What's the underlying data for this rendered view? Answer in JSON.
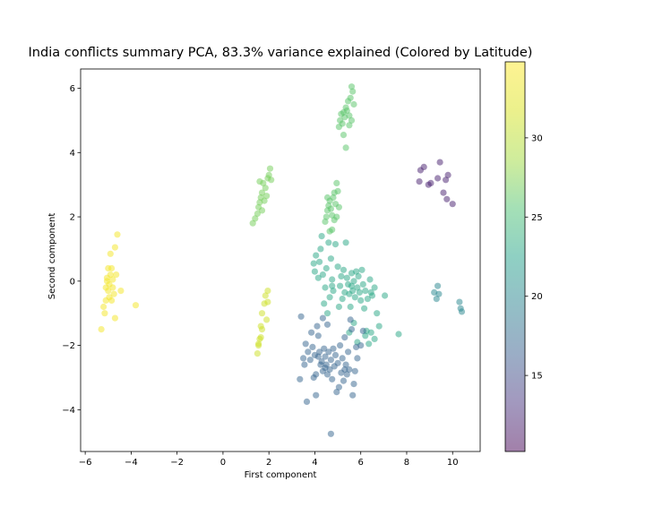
{
  "chart_data": {
    "type": "scatter",
    "title": "India conflicts summary PCA, 83.3% variance explained (Colored by Latitude)",
    "xlabel": "First component",
    "ylabel": "Second component",
    "xlim": [
      -6.2,
      11.2
    ],
    "ylim": [
      -5.3,
      6.6
    ],
    "x_ticks": [
      -6,
      -4,
      -2,
      0,
      2,
      4,
      6,
      8,
      10
    ],
    "x_tick_labels": [
      "−6",
      "−4",
      "−2",
      "0",
      "2",
      "4",
      "6",
      "8",
      "10"
    ],
    "y_ticks": [
      -4,
      -2,
      0,
      2,
      4,
      6
    ],
    "y_tick_labels": [
      "−4",
      "−2",
      "0",
      "2",
      "4",
      "6"
    ],
    "grid": false,
    "colormap": "viridis",
    "point_alpha": 0.5,
    "colorbar": {
      "label": "",
      "range": [
        10.2,
        34.8
      ],
      "ticks": [
        15,
        20,
        25,
        30
      ],
      "tick_labels": [
        "15",
        "20",
        "25",
        "30"
      ]
    },
    "series": [
      {
        "group": "yellow cluster (far left)",
        "color_value": 34,
        "points": [
          [
            -5.3,
            -1.5
          ],
          [
            -5.2,
            -0.8
          ],
          [
            -5.15,
            -1.0
          ],
          [
            -5.1,
            -0.2
          ],
          [
            -5.05,
            0.0
          ],
          [
            -5.0,
            0.4
          ],
          [
            -5.0,
            -0.3
          ],
          [
            -4.95,
            -0.5
          ],
          [
            -4.9,
            0.2
          ],
          [
            -4.9,
            0.85
          ],
          [
            -4.85,
            -0.6
          ],
          [
            -4.85,
            0.4
          ],
          [
            -4.8,
            -0.2
          ],
          [
            -4.8,
            0.05
          ],
          [
            -4.75,
            -0.4
          ],
          [
            -4.7,
            -1.15
          ],
          [
            -4.7,
            1.05
          ],
          [
            -4.65,
            0.2
          ],
          [
            -4.6,
            1.45
          ],
          [
            -4.45,
            -0.3
          ],
          [
            -3.8,
            -0.75
          ],
          [
            -5.05,
            0.1
          ],
          [
            -4.95,
            -0.1
          ],
          [
            -5.1,
            -0.6
          ]
        ]
      },
      {
        "group": "yellow-green cluster",
        "color_value": 31,
        "points": [
          [
            1.5,
            -2.25
          ],
          [
            1.55,
            -2.0
          ],
          [
            1.6,
            -1.8
          ],
          [
            1.65,
            -1.75
          ],
          [
            1.7,
            -1.5
          ],
          [
            1.65,
            -1.4
          ],
          [
            1.7,
            -1.0
          ],
          [
            1.8,
            -0.7
          ],
          [
            1.85,
            -0.45
          ],
          [
            1.9,
            -1.2
          ],
          [
            1.95,
            -0.3
          ],
          [
            1.95,
            -0.65
          ],
          [
            1.55,
            -1.95
          ]
        ]
      },
      {
        "group": "green vertical cluster (lower left of center)",
        "color_value": 27,
        "points": [
          [
            1.3,
            1.8
          ],
          [
            1.4,
            1.95
          ],
          [
            1.5,
            2.1
          ],
          [
            1.55,
            2.3
          ],
          [
            1.6,
            2.45
          ],
          [
            1.65,
            2.6
          ],
          [
            1.7,
            2.75
          ],
          [
            1.8,
            2.5
          ],
          [
            1.85,
            2.9
          ],
          [
            1.9,
            2.65
          ],
          [
            1.95,
            3.2
          ],
          [
            2.0,
            3.3
          ],
          [
            2.05,
            3.5
          ],
          [
            2.1,
            3.15
          ],
          [
            1.75,
            3.05
          ],
          [
            1.7,
            2.2
          ],
          [
            1.6,
            3.1
          ]
        ]
      },
      {
        "group": "top cluster",
        "color_value": 26,
        "points": [
          [
            5.05,
            4.8
          ],
          [
            5.1,
            5.0
          ],
          [
            5.15,
            5.2
          ],
          [
            5.2,
            4.9
          ],
          [
            5.25,
            4.55
          ],
          [
            5.3,
            5.1
          ],
          [
            5.35,
            5.4
          ],
          [
            5.4,
            5.3
          ],
          [
            5.45,
            5.6
          ],
          [
            5.5,
            5.15
          ],
          [
            5.55,
            5.7
          ],
          [
            5.6,
            6.05
          ],
          [
            5.65,
            5.9
          ],
          [
            5.7,
            5.5
          ],
          [
            5.5,
            4.85
          ],
          [
            5.35,
            4.15
          ],
          [
            5.25,
            5.25
          ],
          [
            5.6,
            5.0
          ]
        ]
      },
      {
        "group": "upper center cluster",
        "color_value": 26,
        "points": [
          [
            4.45,
            1.85
          ],
          [
            4.5,
            2.0
          ],
          [
            4.55,
            2.2
          ],
          [
            4.6,
            2.35
          ],
          [
            4.65,
            2.5
          ],
          [
            4.7,
            2.25
          ],
          [
            4.75,
            2.05
          ],
          [
            4.8,
            2.6
          ],
          [
            4.85,
            2.75
          ],
          [
            4.9,
            2.4
          ],
          [
            4.95,
            3.05
          ],
          [
            5.0,
            2.8
          ],
          [
            4.75,
            1.6
          ],
          [
            4.65,
            1.55
          ],
          [
            4.85,
            1.9
          ],
          [
            4.55,
            2.6
          ],
          [
            5.05,
            2.3
          ],
          [
            4.95,
            2.0
          ]
        ]
      },
      {
        "group": "central teal mass",
        "color_value": 23,
        "points": [
          [
            3.95,
            0.55
          ],
          [
            4.0,
            0.3
          ],
          [
            4.05,
            0.8
          ],
          [
            4.15,
            0.1
          ],
          [
            4.2,
            0.6
          ],
          [
            4.25,
            1.0
          ],
          [
            4.3,
            1.4
          ],
          [
            4.35,
            0.2
          ],
          [
            4.4,
            -0.7
          ],
          [
            4.45,
            -0.2
          ],
          [
            4.5,
            0.4
          ],
          [
            4.55,
            -1.0
          ],
          [
            4.6,
            1.2
          ],
          [
            4.65,
            -0.5
          ],
          [
            4.7,
            0.7
          ],
          [
            4.75,
            0.05
          ],
          [
            4.8,
            -0.3
          ],
          [
            4.9,
            1.15
          ],
          [
            5.0,
            0.45
          ],
          [
            5.05,
            -0.8
          ],
          [
            5.1,
            -0.15
          ],
          [
            5.15,
            0.15
          ],
          [
            5.2,
            -0.55
          ],
          [
            5.25,
            0.35
          ],
          [
            5.3,
            -0.35
          ],
          [
            5.35,
            1.2
          ],
          [
            5.4,
            0.1
          ],
          [
            5.45,
            -0.1
          ],
          [
            5.5,
            -0.4
          ],
          [
            5.55,
            -0.8
          ],
          [
            5.6,
            0.25
          ],
          [
            5.65,
            -0.3
          ],
          [
            5.7,
            0.0
          ],
          [
            5.75,
            -0.5
          ],
          [
            5.8,
            0.3
          ],
          [
            5.85,
            -0.2
          ],
          [
            5.9,
            0.15
          ],
          [
            5.95,
            -0.35
          ],
          [
            6.0,
            -0.6
          ],
          [
            6.05,
            0.35
          ],
          [
            6.1,
            -0.1
          ],
          [
            6.15,
            -0.85
          ],
          [
            6.2,
            -0.3
          ],
          [
            6.3,
            -0.55
          ],
          [
            6.4,
            0.05
          ],
          [
            6.45,
            -0.35
          ],
          [
            6.5,
            -0.45
          ],
          [
            6.6,
            -0.2
          ],
          [
            6.7,
            -1.0
          ],
          [
            6.8,
            -1.4
          ],
          [
            7.05,
            -0.45
          ],
          [
            6.25,
            -1.55
          ],
          [
            5.7,
            -1.3
          ],
          [
            5.5,
            -1.6
          ],
          [
            5.85,
            -1.9
          ],
          [
            6.2,
            -1.7
          ],
          [
            6.35,
            -1.95
          ],
          [
            6.45,
            -1.6
          ],
          [
            6.6,
            -1.8
          ],
          [
            7.65,
            -1.65
          ],
          [
            4.75,
            -0.15
          ],
          [
            5.6,
            -0.15
          ]
        ]
      },
      {
        "group": "lower center mass",
        "color_value": 17,
        "points": [
          [
            3.4,
            -1.1
          ],
          [
            3.5,
            -2.4
          ],
          [
            3.55,
            -2.6
          ],
          [
            3.6,
            -1.95
          ],
          [
            3.7,
            -2.2
          ],
          [
            3.8,
            -2.45
          ],
          [
            3.85,
            -1.6
          ],
          [
            3.9,
            -2.05
          ],
          [
            4.0,
            -2.3
          ],
          [
            4.05,
            -2.9
          ],
          [
            4.1,
            -1.4
          ],
          [
            4.15,
            -1.7
          ],
          [
            4.2,
            -2.2
          ],
          [
            4.25,
            -2.6
          ],
          [
            4.3,
            -2.5
          ],
          [
            4.35,
            -2.8
          ],
          [
            4.4,
            -2.1
          ],
          [
            4.45,
            -2.35
          ],
          [
            4.5,
            -2.6
          ],
          [
            4.55,
            -2.9
          ],
          [
            4.6,
            -2.2
          ],
          [
            4.65,
            -2.75
          ],
          [
            4.7,
            -2.45
          ],
          [
            4.75,
            -3.05
          ],
          [
            4.8,
            -2.1
          ],
          [
            4.85,
            -2.65
          ],
          [
            4.9,
            -2.3
          ],
          [
            4.95,
            -3.45
          ],
          [
            5.0,
            -2.55
          ],
          [
            5.05,
            -3.3
          ],
          [
            5.1,
            -2.0
          ],
          [
            5.15,
            -2.85
          ],
          [
            5.2,
            -2.4
          ],
          [
            5.25,
            -3.1
          ],
          [
            5.3,
            -1.75
          ],
          [
            5.35,
            -2.6
          ],
          [
            5.4,
            -2.9
          ],
          [
            5.45,
            -2.2
          ],
          [
            5.5,
            -2.75
          ],
          [
            5.55,
            -1.2
          ],
          [
            5.6,
            -1.5
          ],
          [
            5.65,
            -3.55
          ],
          [
            5.7,
            -3.2
          ],
          [
            5.75,
            -2.8
          ],
          [
            5.8,
            -2.05
          ],
          [
            5.85,
            -2.4
          ],
          [
            6.0,
            -2.0
          ],
          [
            6.1,
            -1.55
          ],
          [
            3.65,
            -3.75
          ],
          [
            4.05,
            -3.55
          ],
          [
            4.45,
            -2.7
          ],
          [
            5.3,
            -2.75
          ],
          [
            4.35,
            -1.15
          ],
          [
            4.55,
            -1.35
          ],
          [
            4.15,
            -2.35
          ],
          [
            3.35,
            -3.05
          ],
          [
            3.95,
            -3.0
          ],
          [
            4.7,
            -4.75
          ]
        ]
      },
      {
        "group": "right teal cluster",
        "color_value": 20,
        "points": [
          [
            9.2,
            -0.35
          ],
          [
            9.3,
            -0.55
          ],
          [
            9.35,
            -0.15
          ],
          [
            9.4,
            -0.4
          ],
          [
            10.3,
            -0.65
          ],
          [
            10.35,
            -0.85
          ],
          [
            10.4,
            -0.95
          ]
        ]
      },
      {
        "group": "upper right purple cluster",
        "color_value": 12,
        "points": [
          [
            8.55,
            3.1
          ],
          [
            8.6,
            3.45
          ],
          [
            8.75,
            3.55
          ],
          [
            8.95,
            3.0
          ],
          [
            9.05,
            3.05
          ],
          [
            9.35,
            3.2
          ],
          [
            9.45,
            3.7
          ],
          [
            9.6,
            2.75
          ],
          [
            9.7,
            3.15
          ],
          [
            9.75,
            2.55
          ],
          [
            9.8,
            3.3
          ],
          [
            10.0,
            2.4
          ]
        ]
      }
    ]
  }
}
